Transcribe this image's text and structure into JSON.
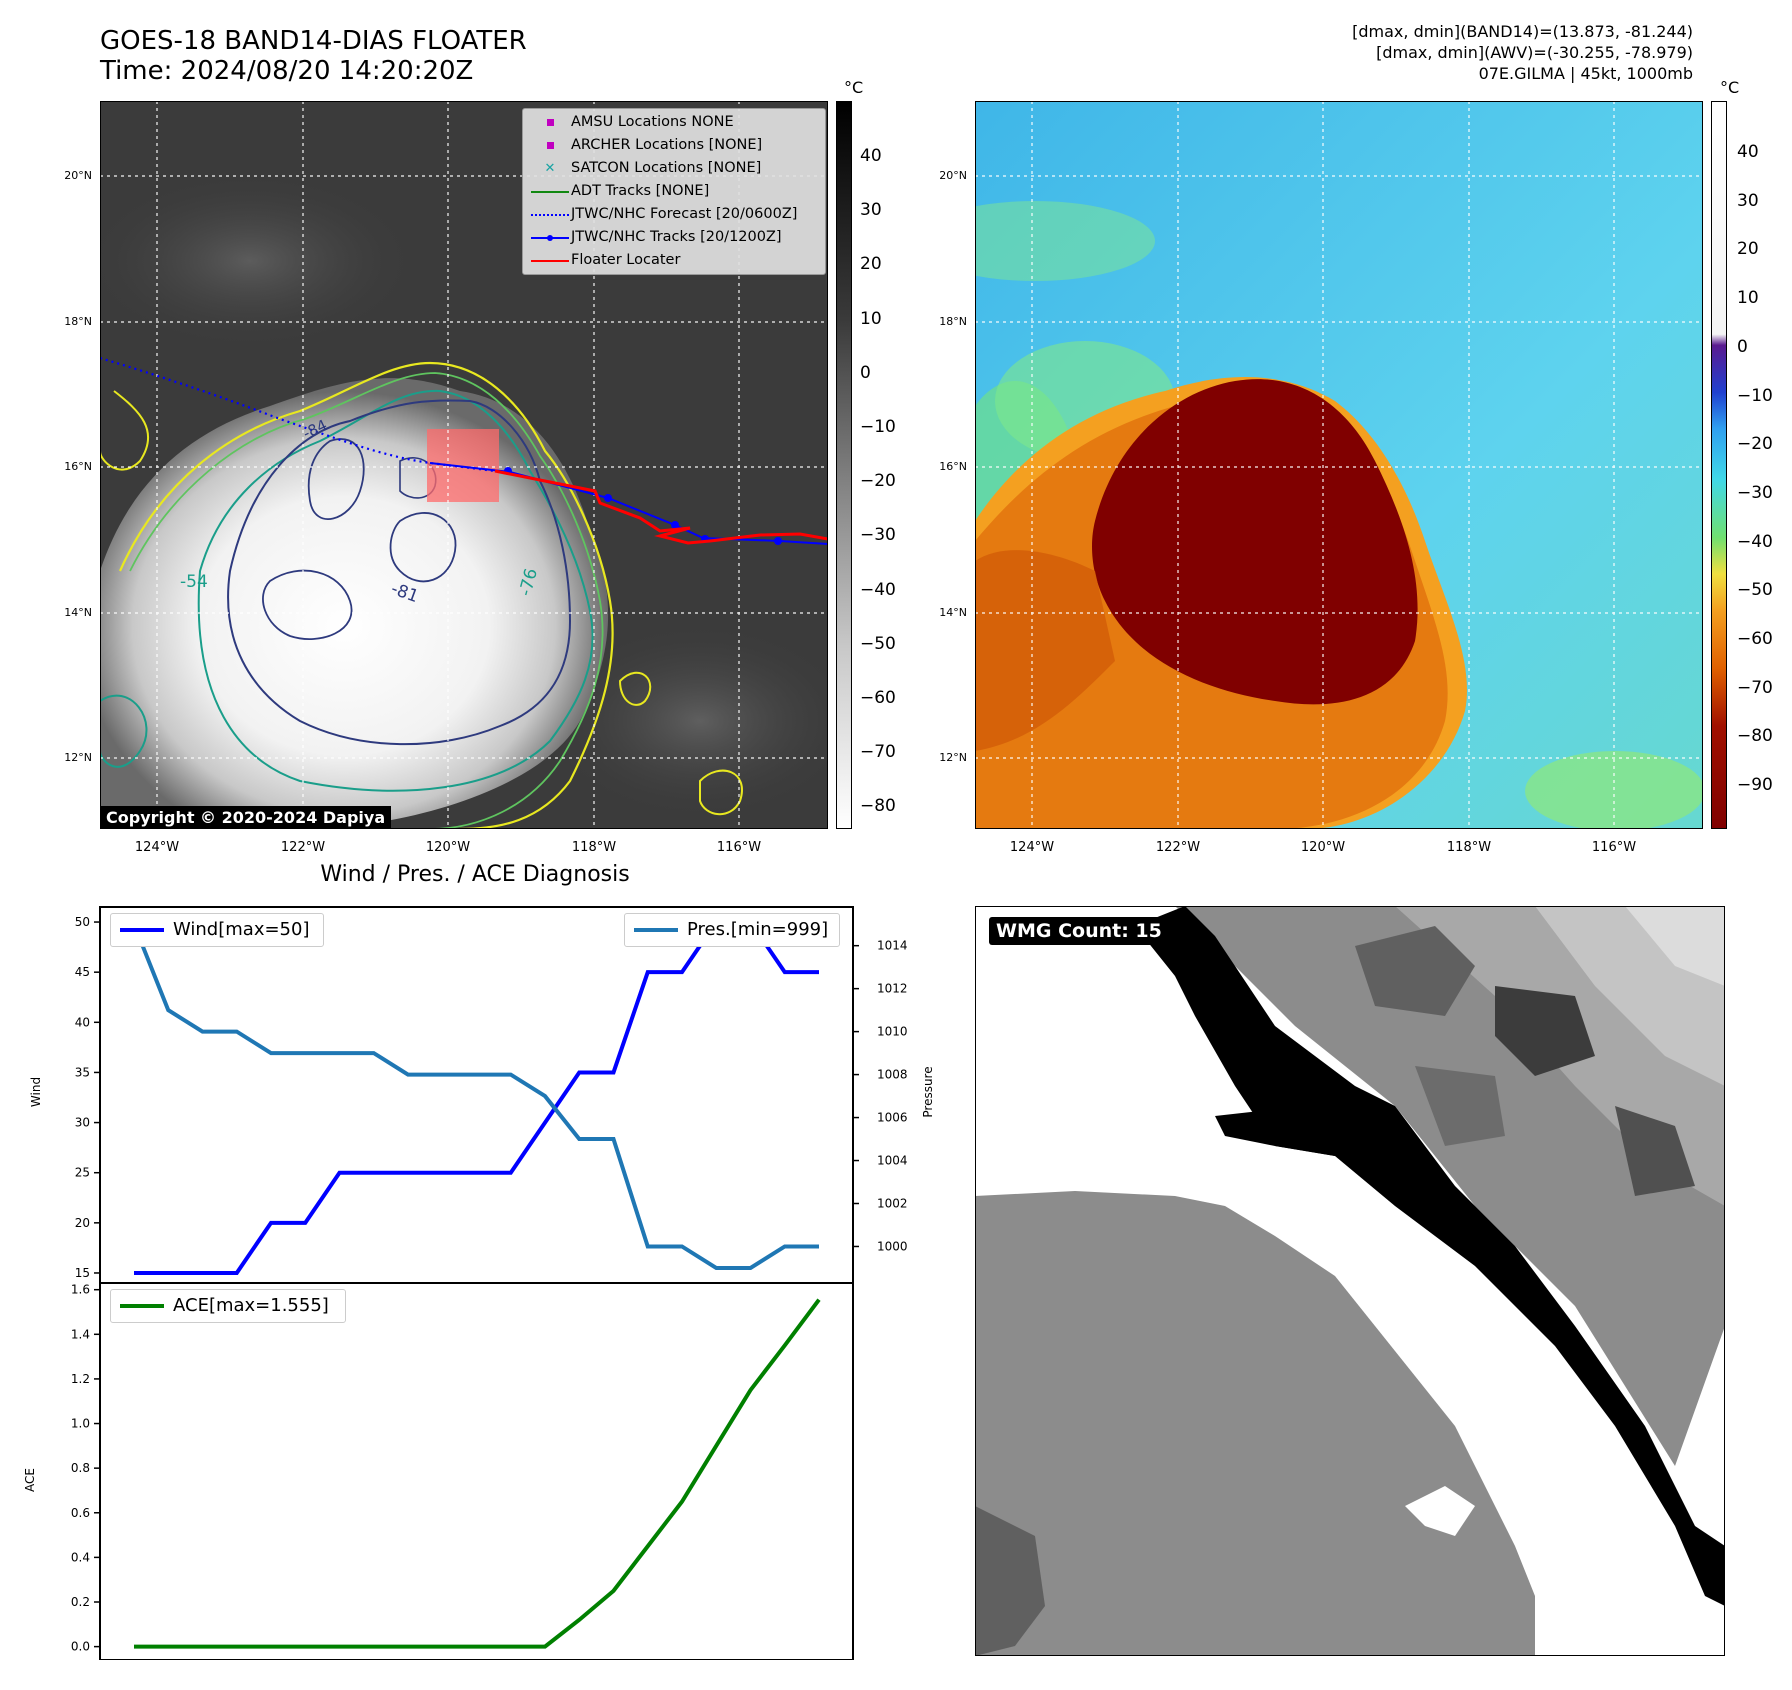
{
  "header": {
    "title_line1": "GOES-18 BAND14-DIAS FLOATER",
    "title_line2": "Time: 2024/08/20 14:20:20Z",
    "info_line1": "[dmax, dmin](BAND14)=(13.873, -81.244)",
    "info_line2": "[dmax, dmin](AWV)=(-30.255, -78.979)",
    "info_line3": "07E.GILMA | 45kt, 1000mb"
  },
  "map": {
    "lat_labels": [
      "20°N",
      "18°N",
      "16°N",
      "14°N",
      "12°N"
    ],
    "lon_labels": [
      "124°W",
      "122°W",
      "120°W",
      "118°W",
      "116°W"
    ],
    "contour_labels": [
      "-84",
      "-81",
      "-76",
      "-54"
    ],
    "copyright": "Copyright © 2020-2024 Dapiya",
    "legend": [
      {
        "label": "AMSU Locations NONE",
        "color": "#c000c0",
        "symbol": "square"
      },
      {
        "label": "ARCHER Locations [NONE]",
        "color": "#c000c0",
        "symbol": "square"
      },
      {
        "label": "SATCON Locations [NONE]",
        "color": "#1aa3a3",
        "symbol": "x"
      },
      {
        "label": "ADT Tracks [NONE]",
        "color": "#118811",
        "symbol": "line"
      },
      {
        "label": "JTWC/NHC Forecast [20/0600Z]",
        "color": "#0000ff",
        "symbol": "dotted"
      },
      {
        "label": "JTWC/NHC Tracks [20/1200Z]",
        "color": "#0000ff",
        "symbol": "line-marker"
      },
      {
        "label": "Floater Locater",
        "color": "#ff0000",
        "symbol": "line"
      }
    ]
  },
  "colorbar_left": {
    "unit": "°C",
    "ticks": [
      "40",
      "30",
      "20",
      "10",
      "0",
      "−10",
      "−20",
      "−30",
      "−40",
      "−50",
      "−60",
      "−70",
      "−80"
    ]
  },
  "colorbar_right": {
    "unit": "°C",
    "ticks": [
      "40",
      "30",
      "20",
      "10",
      "0",
      "−10",
      "−20",
      "−30",
      "−40",
      "−50",
      "−60",
      "−70",
      "−80",
      "−90"
    ]
  },
  "diagnosis": {
    "title": "Wind / Pres. / ACE Diagnosis",
    "wind_ylabel": "Wind",
    "pressure_ylabel": "Pressure",
    "ace_ylabel": "ACE",
    "wind_legend": "Wind[max=50]",
    "pres_legend": "Pres.[min=999]",
    "ace_legend": "ACE[max=1.555]"
  },
  "wmg": {
    "badge": "WMG Count: 15"
  },
  "colors": {
    "wind": "#0000ff",
    "pressure": "#1f77b4",
    "ace": "#008000"
  },
  "chart_data": [
    {
      "type": "line",
      "title": "Wind / Pres. / ACE Diagnosis",
      "ylabel": "Wind",
      "ylim": [
        14,
        51.5
      ],
      "series": [
        {
          "name": "Wind[max=50]",
          "values": [
            15,
            15,
            15,
            15,
            20,
            20,
            25,
            25,
            25,
            25,
            25,
            25,
            30,
            35,
            35,
            45,
            45,
            50,
            50,
            45,
            45
          ]
        }
      ],
      "y2label": "Pressure",
      "y2lim": [
        998.3,
        1015.8
      ],
      "series_y2": [
        {
          "name": "Pres.[min=999]",
          "values": [
            1015,
            1011,
            1010,
            1010,
            1009,
            1009,
            1009,
            1009,
            1008,
            1008,
            1008,
            1008,
            1007,
            1005,
            1005,
            1000,
            1000,
            999,
            999,
            1000,
            1000
          ]
        }
      ],
      "yticks": [
        "15",
        "20",
        "25",
        "30",
        "35",
        "40",
        "45",
        "50"
      ],
      "y2ticks": [
        "1000",
        "1002",
        "1004",
        "1006",
        "1008",
        "1010",
        "1012",
        "1014"
      ]
    },
    {
      "type": "line",
      "ylabel": "ACE",
      "ylim": [
        -0.06,
        1.63
      ],
      "series": [
        {
          "name": "ACE[max=1.555]",
          "values": [
            0,
            0,
            0,
            0,
            0,
            0,
            0,
            0,
            0,
            0,
            0,
            0,
            0,
            0.12,
            0.25,
            0.45,
            0.65,
            0.9,
            1.15,
            1.35,
            1.555
          ]
        }
      ],
      "yticks": [
        "0.0",
        "0.2",
        "0.4",
        "0.6",
        "0.8",
        "1.0",
        "1.2",
        "1.4",
        "1.6"
      ]
    }
  ]
}
